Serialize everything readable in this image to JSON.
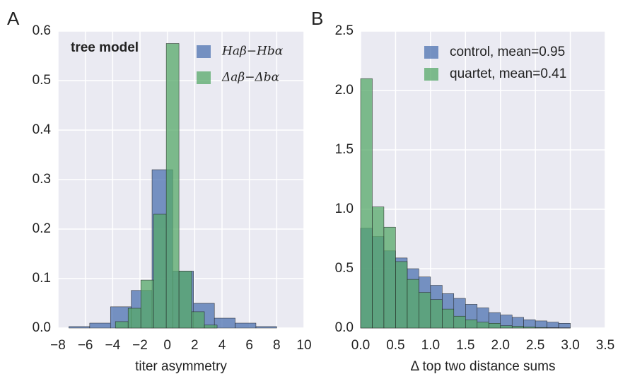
{
  "chart_data": [
    {
      "type": "histogram",
      "panel": "A",
      "annotation": "tree model",
      "xlabel": "titer asymmetry",
      "xlim": [
        -8,
        10
      ],
      "ylim": [
        0,
        0.6
      ],
      "xticks": [
        {
          "value": -8,
          "label": "−8"
        },
        {
          "value": -6,
          "label": "−6"
        },
        {
          "value": -4,
          "label": "−4"
        },
        {
          "value": -2,
          "label": "−2"
        },
        0,
        2,
        4,
        6,
        8,
        10
      ],
      "yticks": [
        {
          "value": 0,
          "label": "0.0"
        },
        0.1,
        0.2,
        0.3,
        0.4,
        0.5,
        0.6
      ],
      "grid": true,
      "legend": "upper right",
      "series": [
        {
          "name": "Haβ−Hbα",
          "color": "#4c72b0",
          "bins": [
            -7.2,
            -5.68,
            -4.16,
            -2.64,
            -1.12,
            0.4,
            1.92,
            3.44,
            4.96,
            6.48,
            8.0
          ],
          "values": [
            0.003,
            0.01,
            0.043,
            0.076,
            0.32,
            0.115,
            0.05,
            0.02,
            0.01,
            0.003
          ]
        },
        {
          "name": "Δaβ−Δbα",
          "color": "#55a868",
          "bins": [
            -3.8,
            -2.87,
            -1.94,
            -1.01,
            -0.08,
            0.85,
            1.78,
            2.71,
            3.64
          ],
          "values": [
            0.013,
            0.04,
            0.097,
            0.23,
            0.575,
            0.115,
            0.033,
            0.006
          ]
        }
      ]
    },
    {
      "type": "histogram",
      "panel": "B",
      "xlabel": "Δ top two distance sums",
      "xlim": [
        0,
        3.5
      ],
      "ylim": [
        0,
        2.5
      ],
      "xticks": [
        {
          "value": 0,
          "label": "0.0"
        },
        0.5,
        {
          "value": 1,
          "label": "1.0"
        },
        1.5,
        {
          "value": 2,
          "label": "2.0"
        },
        2.5,
        {
          "value": 3,
          "label": "3.0"
        },
        3.5
      ],
      "yticks": [
        {
          "value": 0,
          "label": "0.0"
        },
        0.5,
        {
          "value": 1,
          "label": "1.0"
        },
        1.5,
        {
          "value": 2,
          "label": "2.0"
        },
        2.5
      ],
      "grid": true,
      "legend": "upper right",
      "series": [
        {
          "name": "control, mean=0.95",
          "color": "#4c72b0",
          "bins": [
            0,
            0.167,
            0.333,
            0.5,
            0.667,
            0.833,
            1,
            1.167,
            1.333,
            1.5,
            1.667,
            1.833,
            2,
            2.167,
            2.333,
            2.5,
            2.667,
            2.833,
            3
          ],
          "values": [
            0.84,
            0.77,
            0.65,
            0.59,
            0.5,
            0.43,
            0.36,
            0.29,
            0.25,
            0.2,
            0.17,
            0.13,
            0.11,
            0.09,
            0.07,
            0.06,
            0.05,
            0.04
          ]
        },
        {
          "name": "quartet, mean=0.41",
          "color": "#55a868",
          "bins": [
            0,
            0.167,
            0.333,
            0.5,
            0.667,
            0.833,
            1,
            1.167,
            1.333,
            1.5,
            1.667,
            1.833,
            2,
            2.167,
            2.333,
            2.5,
            2.667,
            2.833,
            3
          ],
          "values": [
            2.1,
            1.02,
            0.85,
            0.56,
            0.41,
            0.3,
            0.24,
            0.16,
            0.1,
            0.07,
            0.05,
            0.04,
            0.02,
            0.015,
            0.01,
            0.005,
            0.003,
            0.002
          ]
        }
      ]
    }
  ]
}
